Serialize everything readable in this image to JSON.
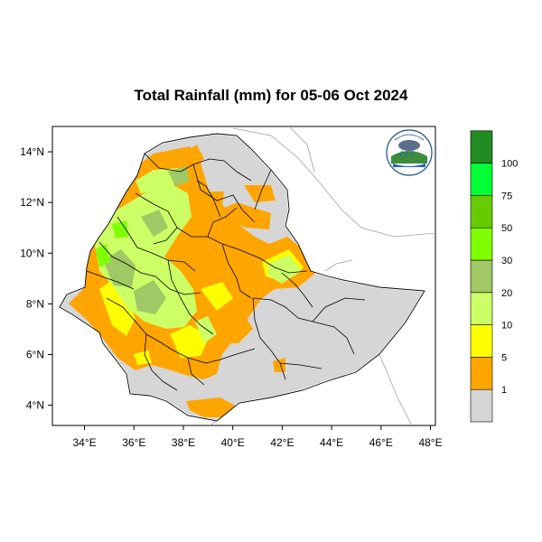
{
  "title": "Total Rainfall (mm) for 05-06 Oct 2024",
  "axes": {
    "lon_ticks": [
      {
        "value": 34,
        "label": "34°E"
      },
      {
        "value": 36,
        "label": "36°E"
      },
      {
        "value": 38,
        "label": "38°E"
      },
      {
        "value": 40,
        "label": "40°E"
      },
      {
        "value": 42,
        "label": "42°E"
      },
      {
        "value": 44,
        "label": "44°E"
      },
      {
        "value": 46,
        "label": "46°E"
      },
      {
        "value": 48,
        "label": "48°E"
      }
    ],
    "lat_ticks": [
      {
        "value": 14,
        "label": "14°N"
      },
      {
        "value": 12,
        "label": "12°N"
      },
      {
        "value": 10,
        "label": "10°N"
      },
      {
        "value": 8,
        "label": "8°N"
      },
      {
        "value": 6,
        "label": "6°N"
      },
      {
        "value": 4,
        "label": "4°N"
      }
    ],
    "lon_range": [
      32.7,
      48.2
    ],
    "lat_range": [
      3.2,
      15.0
    ]
  },
  "legend": {
    "classes": [
      {
        "color": "#d6d6d6",
        "label": "1"
      },
      {
        "color": "#ffa500",
        "label": "5"
      },
      {
        "color": "#ffff00",
        "label": "10"
      },
      {
        "color": "#ccff66",
        "label": "20"
      },
      {
        "color": "#a0c864",
        "label": "30"
      },
      {
        "color": "#80ff00",
        "label": "50"
      },
      {
        "color": "#66cc00",
        "label": "75"
      },
      {
        "color": "#00ff33",
        "label": "100"
      },
      {
        "color": "#228b22",
        "label": ""
      }
    ]
  },
  "colors": {
    "no_rain": "#d6d6d6",
    "boundary": "#000000",
    "neighbor": "#a0a0a0"
  },
  "logo": {
    "text": "Ethiopian Meteorology Institute"
  }
}
